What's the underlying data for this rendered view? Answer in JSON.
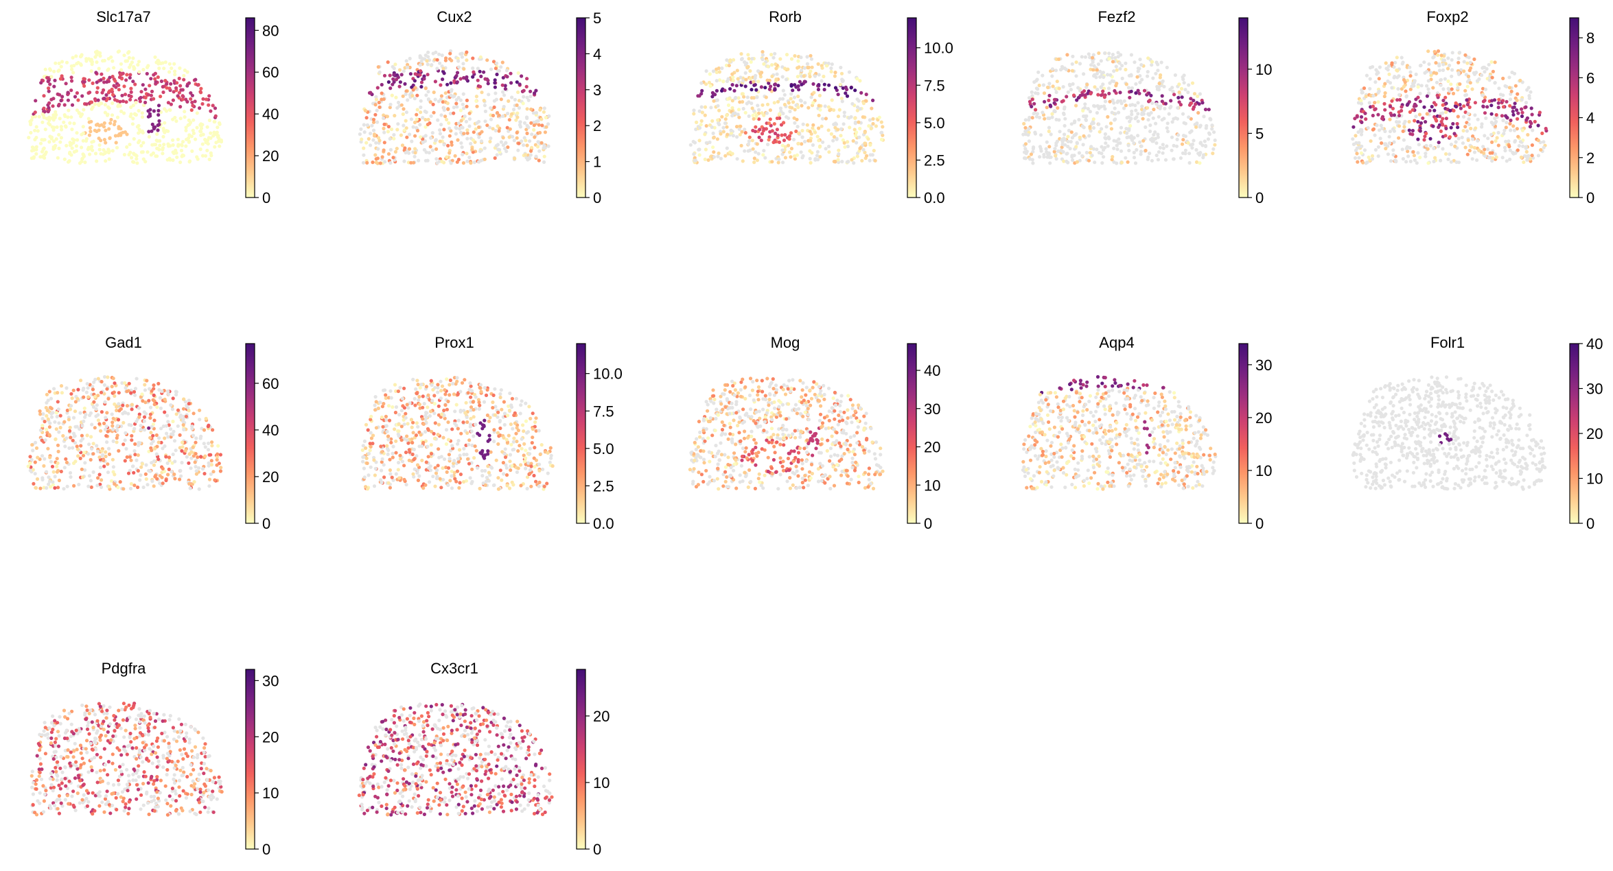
{
  "colors": {
    "background_tissue": "#e4e4e4",
    "colormap": [
      "#fcfdbf",
      "#feca8d",
      "#fd9668",
      "#f1605d",
      "#cd4071",
      "#9e2f7f",
      "#721f81",
      "#440f76"
    ]
  },
  "chart_data": [
    {
      "type": "scatter",
      "title": "Slc17a7",
      "colorbar_ticks": [
        "0",
        "20",
        "40",
        "60",
        "80"
      ],
      "colorbar_range": [
        0,
        86
      ],
      "pattern": "slc"
    },
    {
      "type": "scatter",
      "title": "Cux2",
      "colorbar_ticks": [
        "0",
        "1",
        "2",
        "3",
        "4",
        "5"
      ],
      "colorbar_range": [
        0,
        5
      ],
      "pattern": "cux"
    },
    {
      "type": "scatter",
      "title": "Rorb",
      "colorbar_ticks": [
        "0.0",
        "2.5",
        "5.0",
        "7.5",
        "10.0"
      ],
      "colorbar_range": [
        0,
        12
      ],
      "pattern": "rorb"
    },
    {
      "type": "scatter",
      "title": "Fezf2",
      "colorbar_ticks": [
        "0",
        "5",
        "10"
      ],
      "colorbar_range": [
        0,
        14
      ],
      "pattern": "fezf"
    },
    {
      "type": "scatter",
      "title": "Foxp2",
      "colorbar_ticks": [
        "0",
        "2",
        "4",
        "6",
        "8"
      ],
      "colorbar_range": [
        0,
        9
      ],
      "pattern": "foxp"
    },
    {
      "type": "scatter",
      "title": "Gad1",
      "colorbar_ticks": [
        "0",
        "20",
        "40",
        "60"
      ],
      "colorbar_range": [
        0,
        77
      ],
      "pattern": "gad"
    },
    {
      "type": "scatter",
      "title": "Prox1",
      "colorbar_ticks": [
        "0.0",
        "2.5",
        "5.0",
        "7.5",
        "10.0"
      ],
      "colorbar_range": [
        0,
        12
      ],
      "pattern": "prox"
    },
    {
      "type": "scatter",
      "title": "Mog",
      "colorbar_ticks": [
        "0",
        "10",
        "20",
        "30",
        "40"
      ],
      "colorbar_range": [
        0,
        47
      ],
      "pattern": "mog"
    },
    {
      "type": "scatter",
      "title": "Aqp4",
      "colorbar_ticks": [
        "0",
        "10",
        "20",
        "30"
      ],
      "colorbar_range": [
        0,
        34
      ],
      "pattern": "aqp"
    },
    {
      "type": "scatter",
      "title": "Folr1",
      "colorbar_ticks": [
        "0",
        "10",
        "20",
        "30",
        "40"
      ],
      "colorbar_range": [
        0,
        40
      ],
      "pattern": "folr"
    },
    {
      "type": "scatter",
      "title": "Pdgfra",
      "colorbar_ticks": [
        "0",
        "10",
        "20",
        "30"
      ],
      "colorbar_range": [
        0,
        32
      ],
      "pattern": "pdgf"
    },
    {
      "type": "scatter",
      "title": "Cx3cr1",
      "colorbar_ticks": [
        "0",
        "10",
        "20"
      ],
      "colorbar_range": [
        0,
        27
      ],
      "pattern": "cx3"
    }
  ]
}
